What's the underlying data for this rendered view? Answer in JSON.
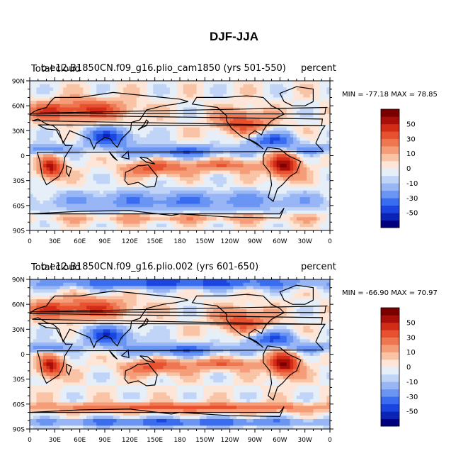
{
  "figure_title": "DJF-JJA",
  "colors": {
    "scale": [
      "#00007e",
      "#0b24b6",
      "#1a45e0",
      "#3a6cf0",
      "#6a95f3",
      "#98b6f5",
      "#c0d4f7",
      "#e6eef8",
      "#fde6d8",
      "#f9c4a6",
      "#f49d78",
      "#ee7651",
      "#e8512f",
      "#d22b18",
      "#a80f08",
      "#7a0000"
    ]
  },
  "chart_data": [
    {
      "type": "heatmap",
      "id": "top",
      "left_label": "Total cloud",
      "title": "b.e12.B1850CN.f09_g16.plio_cam1850 (yrs 501-550)",
      "units": "percent",
      "stats": "MIN = -77.18 MAX =  78.85",
      "min": -77.18,
      "max": 78.85,
      "xlim": [
        0,
        360
      ],
      "ylim": [
        -90,
        90
      ],
      "x_ticks": [
        "0",
        "30E",
        "60E",
        "90E",
        "120E",
        "150E",
        "180",
        "150W",
        "120W",
        "90W",
        "60W",
        "30W",
        "0"
      ],
      "y_ticks": [
        "90N",
        "60N",
        "30N",
        "0",
        "30S",
        "60S",
        "90S"
      ],
      "colorbar_labels": [
        "50",
        "30",
        "10",
        "0",
        "-10",
        "-30",
        "-50"
      ]
    },
    {
      "type": "heatmap",
      "id": "bottom",
      "left_label": "Total cloud",
      "title": "b.e12.B1850CN.f09_g16.plio.002 (yrs 601-650)",
      "units": "percent",
      "stats": "MIN = -66.90 MAX =  70.97",
      "min": -66.9,
      "max": 70.97,
      "xlim": [
        0,
        360
      ],
      "ylim": [
        -90,
        90
      ],
      "x_ticks": [
        "0",
        "30E",
        "60E",
        "90E",
        "120E",
        "150E",
        "180",
        "150W",
        "120W",
        "90W",
        "60W",
        "30W",
        "0"
      ],
      "y_ticks": [
        "90N",
        "60N",
        "30N",
        "0",
        "30S",
        "60S",
        "90S"
      ],
      "colorbar_labels": [
        "50",
        "30",
        "10",
        "0",
        "-10",
        "-30",
        "-50"
      ]
    }
  ]
}
